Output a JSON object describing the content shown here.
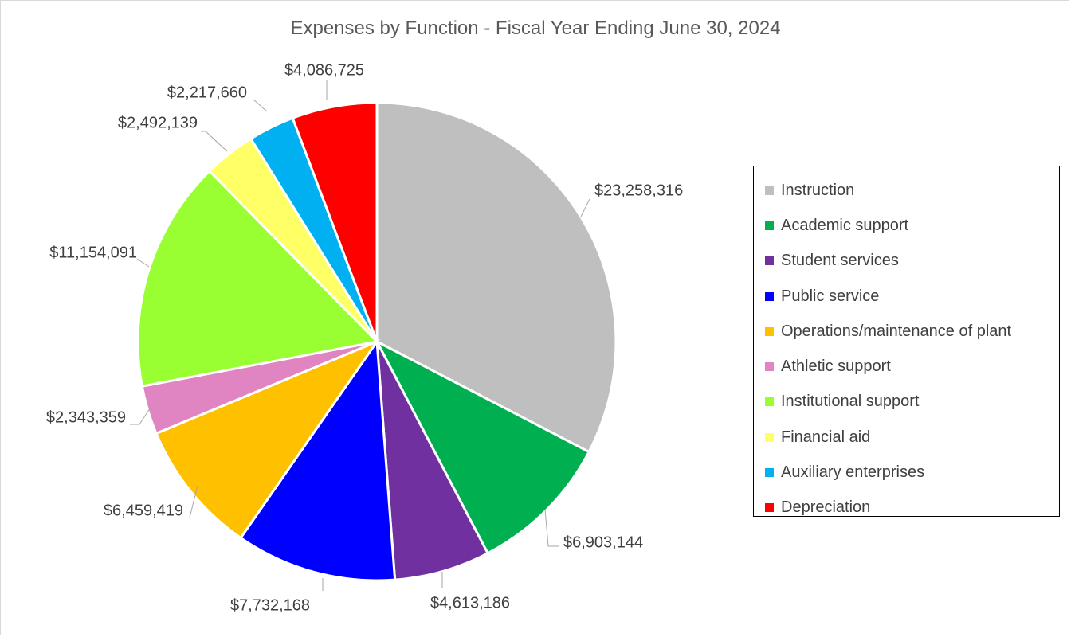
{
  "chart_data": {
    "type": "pie",
    "title": "Expenses by Function - Fiscal Year Ending June 30, 2024",
    "legend_position": "right",
    "slices": [
      {
        "label": "Instruction",
        "value": 23258316,
        "value_label": "$23,258,316",
        "color": "#bfbfbf"
      },
      {
        "label": "Academic support",
        "value": 6903144,
        "value_label": "$6,903,144",
        "color": "#00b050"
      },
      {
        "label": "Student services",
        "value": 4613186,
        "value_label": "$4,613,186",
        "color": "#7030a0"
      },
      {
        "label": "Public service",
        "value": 7732168,
        "value_label": "$7,732,168",
        "color": "#0000ff"
      },
      {
        "label": "Operations/maintenance of plant",
        "value": 6459419,
        "value_label": "$6,459,419",
        "color": "#ffc000"
      },
      {
        "label": "Athletic support",
        "value": 2343359,
        "value_label": "$2,343,359",
        "color": "#e085c2"
      },
      {
        "label": "Institutional support",
        "value": 11154091,
        "value_label": "$11,154,091",
        "color": "#99ff33"
      },
      {
        "label": "Financial aid",
        "value": 2492139,
        "value_label": "$2,492,139",
        "color": "#ffff66"
      },
      {
        "label": "Auxiliary enterprises",
        "value": 2217660,
        "value_label": "$2,217,660",
        "color": "#00b0f0"
      },
      {
        "label": "Depreciation",
        "value": 4086725,
        "value_label": "$4,086,725",
        "color": "#ff0000"
      }
    ]
  }
}
